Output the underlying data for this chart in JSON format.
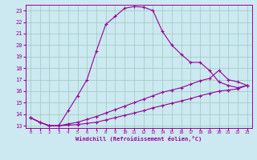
{
  "xlabel": "Windchill (Refroidissement éolien,°C)",
  "background_color": "#cce8f0",
  "grid_color": "#99ccbb",
  "line_color": "#990099",
  "spine_color": "#660066",
  "x_ticks": [
    0,
    1,
    2,
    3,
    4,
    5,
    6,
    7,
    8,
    9,
    10,
    11,
    12,
    13,
    14,
    15,
    16,
    17,
    18,
    19,
    20,
    21,
    22,
    23
  ],
  "y_ticks": [
    13,
    14,
    15,
    16,
    17,
    18,
    19,
    20,
    21,
    22,
    23
  ],
  "xlim": [
    -0.5,
    23.5
  ],
  "ylim": [
    12.8,
    23.5
  ],
  "curve1_x": [
    0,
    1,
    2,
    3,
    4,
    5,
    6,
    7,
    8,
    9,
    10,
    11,
    12,
    13,
    14,
    15,
    16,
    17,
    18,
    19,
    20,
    21,
    22,
    23
  ],
  "curve1_y": [
    13.7,
    13.3,
    13.0,
    13.0,
    14.3,
    15.6,
    17.0,
    19.5,
    21.8,
    22.5,
    23.2,
    23.35,
    23.3,
    23.0,
    21.2,
    20.0,
    19.2,
    18.5,
    18.5,
    17.8,
    16.8,
    16.5,
    16.3,
    16.5
  ],
  "curve2_x": [
    0,
    1,
    2,
    3,
    4,
    5,
    6,
    7,
    8,
    9,
    10,
    11,
    12,
    13,
    14,
    15,
    16,
    17,
    18,
    19,
    20,
    21,
    22,
    23
  ],
  "curve2_y": [
    13.7,
    13.3,
    13.0,
    13.0,
    13.15,
    13.3,
    13.55,
    13.8,
    14.1,
    14.4,
    14.7,
    15.0,
    15.3,
    15.6,
    15.9,
    16.1,
    16.3,
    16.6,
    16.9,
    17.1,
    17.8,
    17.0,
    16.8,
    16.5
  ],
  "curve3_x": [
    0,
    1,
    2,
    3,
    4,
    5,
    6,
    7,
    8,
    9,
    10,
    11,
    12,
    13,
    14,
    15,
    16,
    17,
    18,
    19,
    20,
    21,
    22,
    23
  ],
  "curve3_y": [
    13.7,
    13.3,
    13.0,
    13.0,
    13.05,
    13.1,
    13.2,
    13.3,
    13.5,
    13.7,
    13.9,
    14.1,
    14.3,
    14.55,
    14.75,
    14.95,
    15.15,
    15.35,
    15.6,
    15.8,
    16.0,
    16.1,
    16.2,
    16.5
  ]
}
